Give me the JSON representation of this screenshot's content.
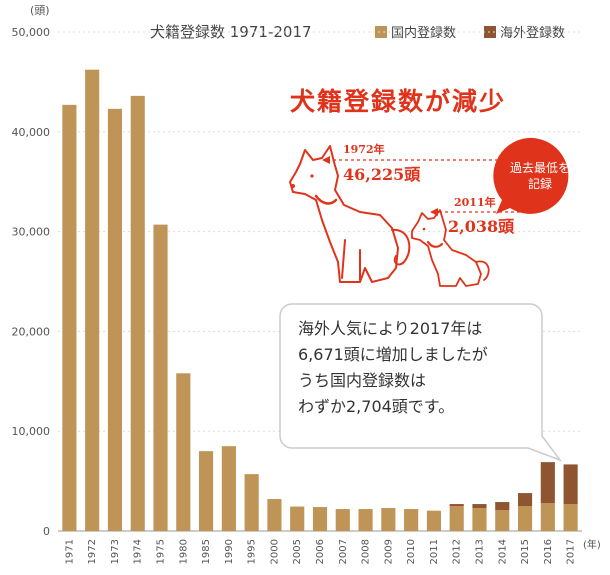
{
  "chart_data": {
    "type": "bar",
    "stacked": true,
    "title": "犬籍登録数 1971-2017",
    "y_unit": "(頭)",
    "x_unit": "(年)",
    "ylim": [
      0,
      50000
    ],
    "yticks": [
      "0",
      "10,000",
      "20,000",
      "30,000",
      "40,000",
      "50,000"
    ],
    "ytick_values": [
      0,
      10000,
      20000,
      30000,
      40000,
      50000
    ],
    "categories": [
      "1971",
      "1972",
      "1973",
      "1974",
      "1975",
      "1980",
      "1985",
      "1990",
      "1995",
      "2000",
      "2005",
      "2006",
      "2007",
      "2008",
      "2009",
      "2010",
      "2011",
      "2012",
      "2013",
      "2014",
      "2015",
      "2016",
      "2017"
    ],
    "highlight_categories": [
      "1972",
      "2011"
    ],
    "legend_position": "top-right",
    "series": [
      {
        "name": "国内登録数",
        "color": "#be9457",
        "values": [
          42700,
          46225,
          42300,
          43600,
          30700,
          15800,
          8000,
          8500,
          5700,
          3200,
          2450,
          2400,
          2200,
          2200,
          2300,
          2200,
          2038,
          2500,
          2300,
          2100,
          2500,
          2800,
          2704
        ]
      },
      {
        "name": "海外登録数",
        "color": "#8e5530",
        "values": [
          0,
          0,
          0,
          0,
          0,
          0,
          0,
          0,
          0,
          0,
          0,
          0,
          0,
          0,
          0,
          0,
          0,
          200,
          400,
          800,
          1300,
          4100,
          3967
        ]
      }
    ]
  },
  "headline": "犬籍登録数が減少",
  "annotations": {
    "peak_year": "1972年",
    "peak_value": "46,225頭",
    "low_year": "2011年",
    "low_value": "2,038頭",
    "badge_line1": "過去最低を",
    "badge_line2": "記録"
  },
  "callout": {
    "lines": [
      "海外人気により2017年は",
      "6,671頭に増加しましたが",
      "うち国内登録数は",
      "わずか2,704頭です。"
    ]
  },
  "colors": {
    "accent": "#e0331b",
    "domestic": "#be9457",
    "overseas": "#8e5530"
  }
}
